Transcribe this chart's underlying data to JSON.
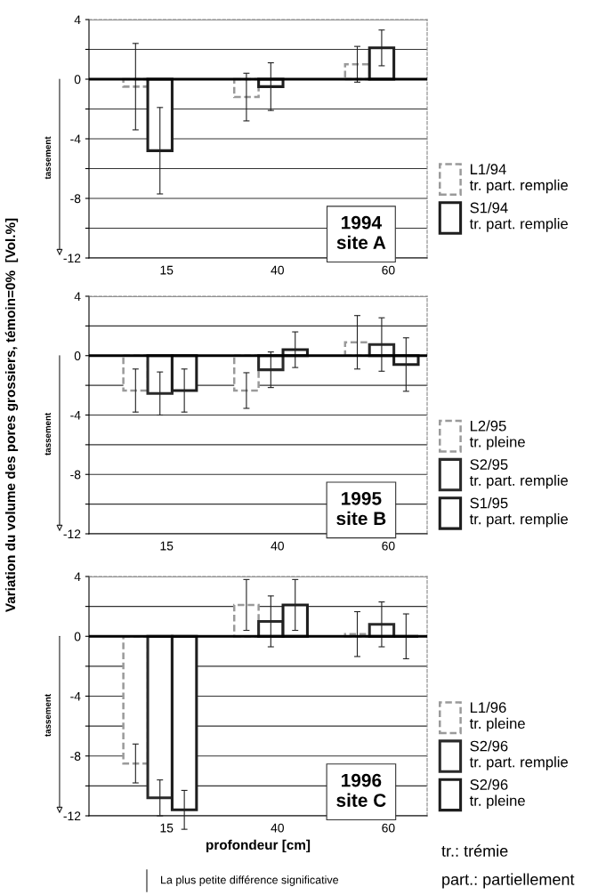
{
  "chart_data": [
    {
      "type": "bar",
      "title": "1994\nsite A",
      "categories": [
        "15",
        "40",
        "60"
      ],
      "series": [
        {
          "name": "L1/94\ntr. part. remplie",
          "color": "#9a9a9a",
          "line_style": "dashed",
          "values": [
            -0.5,
            -1.2,
            1.0
          ],
          "errors": [
            2.9,
            1.6,
            1.2
          ]
        },
        {
          "name": "S1/94\ntr. part. remplie",
          "color": "#1e1e1e",
          "values": [
            -4.8,
            -0.5,
            2.1
          ],
          "errors": [
            2.9,
            1.6,
            1.2
          ]
        }
      ],
      "ylim": [
        -12,
        4
      ],
      "yticks": [
        -12,
        {
          "value": -10,
          "label": null
        },
        -8,
        {
          "value": -6,
          "label": null
        },
        -4,
        {
          "value": -2,
          "label": null
        },
        0,
        {
          "value": 2,
          "label": null
        },
        4
      ],
      "grid": "y",
      "legend": "right",
      "ref_lines": [
        {
          "axis": "y",
          "value": 0,
          "color": "#000000"
        }
      ],
      "annotations": [
        "tassement"
      ]
    },
    {
      "type": "bar",
      "title": "1995\nsite B",
      "ylabel": "Variation du volume des pores grossiers, témoin=0%  [Vol.%]",
      "categories": [
        "15",
        "40",
        "60"
      ],
      "series": [
        {
          "name": "L2/95\ntr. pleine",
          "color": "#9a9a9a",
          "line_style": "dashed",
          "values": [
            -2.35,
            -2.35,
            0.9
          ],
          "errors": [
            1.45,
            1.2,
            1.8
          ]
        },
        {
          "name": "S2/95\ntr. part. remplie",
          "color": "#2a2a2a",
          "values": [
            -2.55,
            -0.95,
            0.75
          ],
          "errors": [
            1.45,
            1.2,
            1.8
          ]
        },
        {
          "name": "S1/95\ntr. part. remplie",
          "color": "#1e1e1e",
          "values": [
            -2.35,
            0.4,
            -0.6
          ],
          "errors": [
            1.45,
            1.2,
            1.8
          ]
        }
      ],
      "ylim": [
        -12,
        4
      ],
      "yticks": [
        -12,
        {
          "value": -10,
          "label": null
        },
        -8,
        {
          "value": -6,
          "label": null
        },
        -4,
        {
          "value": -2,
          "label": null
        },
        0,
        {
          "value": 2,
          "label": null
        },
        4
      ],
      "grid": "y",
      "legend": "right",
      "ref_lines": [
        {
          "axis": "y",
          "value": 0,
          "color": "#000000"
        }
      ],
      "annotations": [
        "tassement"
      ]
    },
    {
      "type": "bar",
      "title": "1996\nsite C",
      "xlabel": "profondeur [cm]",
      "categories": [
        "15",
        "40",
        "60"
      ],
      "series": [
        {
          "name": "L1/96\ntr. pleine",
          "color": "#9a9a9a",
          "line_style": "dashed",
          "values": [
            -8.5,
            2.1,
            0.15
          ],
          "errors": [
            1.3,
            1.7,
            1.5
          ]
        },
        {
          "name": "S2/96\ntr. part. remplie",
          "color": "#2a2a2a",
          "values": [
            -10.8,
            1.0,
            0.8
          ],
          "errors": [
            1.2,
            1.7,
            1.5
          ]
        },
        {
          "name": "S2/96\ntr. pleine",
          "color": "#1e1e1e",
          "values": [
            -11.6,
            2.1,
            0
          ],
          "errors": [
            1.3,
            1.7,
            1.5
          ]
        }
      ],
      "ylim": [
        -12,
        4
      ],
      "yticks": [
        -12,
        {
          "value": -10,
          "label": null
        },
        -8,
        {
          "value": -6,
          "label": null
        },
        -4,
        {
          "value": -2,
          "label": null
        },
        0,
        {
          "value": 2,
          "label": null
        },
        4
      ],
      "grid": "y",
      "legend": "right",
      "ref_lines": [
        {
          "axis": "y",
          "value": 0,
          "color": "#000000"
        }
      ],
      "annotations": [
        "tassement",
        "La plus petite différence significative",
        "tr.: trémie",
        "part.: partiellement"
      ]
    }
  ]
}
